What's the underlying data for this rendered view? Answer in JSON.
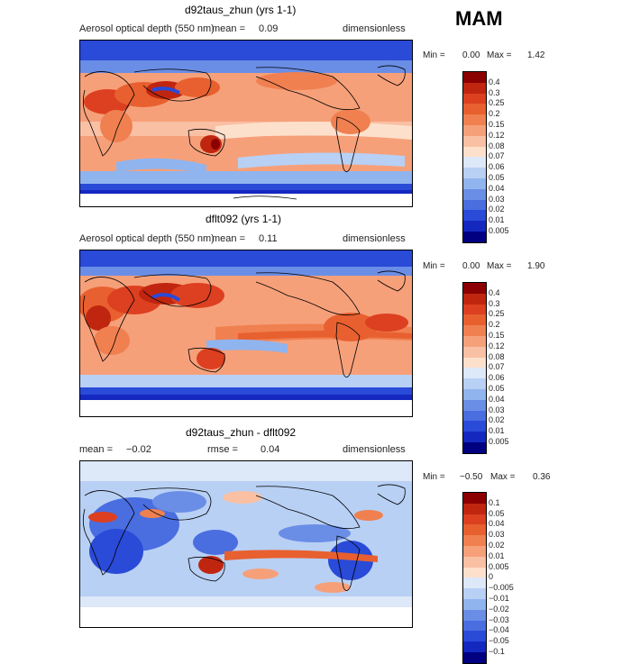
{
  "season": "MAM",
  "panels": [
    {
      "title": "d92taus_zhun (yrs 1-1)",
      "variable": "Aerosol optical depth (550 nm)",
      "mean_label": "mean =",
      "mean_value": "0.09",
      "units": "dimensionless",
      "min_label": "Min =",
      "min_value": "0.00",
      "max_label": "Max =",
      "max_value": "1.42",
      "legend_ticks": [
        "0.4",
        "0.3",
        "0.25",
        "0.2",
        "0.15",
        "0.12",
        "0.08",
        "0.07",
        "0.06",
        "0.05",
        "0.04",
        "0.03",
        "0.02",
        "0.01",
        "0.005"
      ],
      "legend_colors": [
        "#8b0000",
        "#c0260f",
        "#dc4020",
        "#e8602f",
        "#f08050",
        "#f6a07a",
        "#f9c0a4",
        "#fde0cc",
        "#dde8f8",
        "#b8d0f4",
        "#90b4ee",
        "#6a8ee6",
        "#4a6ee0",
        "#2a4ad8",
        "#1428c0",
        "#000080"
      ]
    },
    {
      "title": "dflt092 (yrs 1-1)",
      "variable": "Aerosol optical depth (550 nm)",
      "mean_label": "mean =",
      "mean_value": "0.11",
      "units": "dimensionless",
      "min_label": "Min =",
      "min_value": "0.00",
      "max_label": "Max =",
      "max_value": "1.90",
      "legend_ticks": [
        "0.4",
        "0.3",
        "0.25",
        "0.2",
        "0.15",
        "0.12",
        "0.08",
        "0.07",
        "0.06",
        "0.05",
        "0.04",
        "0.03",
        "0.02",
        "0.01",
        "0.005"
      ],
      "legend_colors": [
        "#8b0000",
        "#c0260f",
        "#dc4020",
        "#e8602f",
        "#f08050",
        "#f6a07a",
        "#f9c0a4",
        "#fde0cc",
        "#dde8f8",
        "#b8d0f4",
        "#90b4ee",
        "#6a8ee6",
        "#4a6ee0",
        "#2a4ad8",
        "#1428c0",
        "#000080"
      ]
    },
    {
      "title": "d92taus_zhun - dflt092",
      "mean_label": "mean =",
      "mean_value": "−0.02",
      "rmse_label": "rmse =",
      "rmse_value": "0.04",
      "units": "dimensionless",
      "min_label": "Min =",
      "min_value": "−0.50",
      "max_label": "Max =",
      "max_value": "0.36",
      "legend_ticks": [
        "0.1",
        "0.05",
        "0.04",
        "0.03",
        "0.02",
        "0.01",
        "0.005",
        "0",
        "−0.005",
        "−0.01",
        "−0.02",
        "−0.03",
        "−0.04",
        "−0.05",
        "−0.1"
      ],
      "legend_colors": [
        "#8b0000",
        "#c0260f",
        "#dc4020",
        "#e8602f",
        "#f08050",
        "#f6a07a",
        "#f9c0a4",
        "#fde0cc",
        "#dde8f8",
        "#b8d0f4",
        "#90b4ee",
        "#6a8ee6",
        "#4a6ee0",
        "#2a4ad8",
        "#1428c0",
        "#000080"
      ]
    }
  ]
}
